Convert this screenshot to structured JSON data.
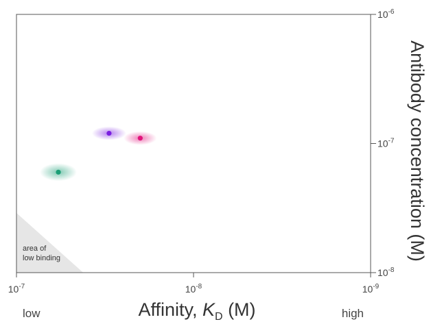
{
  "chart_data": {
    "type": "scatter",
    "title": "",
    "xlabel": {
      "main": "Affinity, ",
      "italic": "K",
      "sub": "D",
      "unit": " (M)"
    },
    "ylabel": "Antibody concentration (M)",
    "x_scale": "log",
    "y_scale": "log",
    "xlim": [
      1e-07,
      1e-09
    ],
    "ylim": [
      1e-08,
      1e-06
    ],
    "x_ticks": [
      {
        "value": 1e-07,
        "base": "10",
        "exp": "-7"
      },
      {
        "value": 1e-08,
        "base": "10",
        "exp": "-8"
      },
      {
        "value": 1e-09,
        "base": "10",
        "exp": "-9"
      }
    ],
    "y_ticks": [
      {
        "value": 1e-08,
        "base": "10",
        "exp": "-8"
      },
      {
        "value": 1e-07,
        "base": "10",
        "exp": "-7"
      },
      {
        "value": 1e-06,
        "base": "10",
        "exp": "-6"
      }
    ],
    "x_end_labels": {
      "low": "low",
      "high": "high"
    },
    "grid": false,
    "points": [
      {
        "x": 5.8e-08,
        "y": 6e-08,
        "color": "#1a9e75",
        "glow_rx": 27,
        "glow_ry": 13
      },
      {
        "x": 3e-08,
        "y": 1.2e-07,
        "color": "#7a1fe0",
        "glow_rx": 25,
        "glow_ry": 10
      },
      {
        "x": 2e-08,
        "y": 1.1e-07,
        "color": "#e0147c",
        "glow_rx": 24,
        "glow_ry": 10
      }
    ],
    "shaded_region": {
      "label_lines": [
        "area of",
        "low binding"
      ],
      "fill": "#e6e6e6",
      "vertices": [
        [
          1e-07,
          1e-08
        ],
        [
          4.2e-08,
          1e-08
        ],
        [
          1e-07,
          2.9e-08
        ]
      ]
    }
  }
}
